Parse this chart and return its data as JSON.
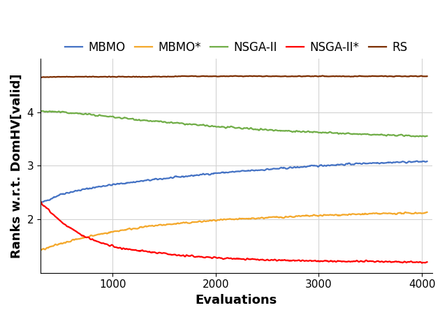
{
  "title": "",
  "xlabel": "Evaluations",
  "ylabel": "Ranks w.r.t. DomHV[valid]",
  "xlim": [
    300,
    4100
  ],
  "ylim": [
    1.0,
    5.0
  ],
  "yticks": [
    2,
    3,
    4
  ],
  "xticks": [
    1000,
    2000,
    3000,
    4000
  ],
  "series": [
    {
      "label": "MBMO",
      "color": "#4472C4",
      "points_x": [
        300,
        500,
        700,
        900,
        1100,
        1400,
        1700,
        2000,
        2500,
        3000,
        3500,
        4050
      ],
      "points_y": [
        2.3,
        2.47,
        2.55,
        2.62,
        2.67,
        2.74,
        2.8,
        2.86,
        2.93,
        3.0,
        3.05,
        3.08
      ],
      "noise": 0.012
    },
    {
      "label": "MBMO*",
      "color": "#F4A82B",
      "points_x": [
        300,
        500,
        700,
        900,
        1100,
        1400,
        1700,
        2000,
        2500,
        3000,
        3500,
        4050
      ],
      "points_y": [
        1.42,
        1.55,
        1.65,
        1.73,
        1.8,
        1.88,
        1.93,
        1.98,
        2.03,
        2.07,
        2.1,
        2.12
      ],
      "noise": 0.012
    },
    {
      "label": "NSGA-II",
      "color": "#70AD47",
      "points_x": [
        300,
        500,
        700,
        900,
        1100,
        1400,
        1700,
        2000,
        2500,
        3000,
        3500,
        4050
      ],
      "points_y": [
        4.02,
        4.0,
        3.97,
        3.93,
        3.89,
        3.83,
        3.78,
        3.73,
        3.67,
        3.62,
        3.58,
        3.55
      ],
      "noise": 0.012
    },
    {
      "label": "NSGA-II*",
      "color": "#FF0000",
      "points_x": [
        300,
        500,
        700,
        900,
        1100,
        1400,
        1700,
        2000,
        2500,
        3000,
        3500,
        4050
      ],
      "points_y": [
        2.32,
        1.95,
        1.7,
        1.55,
        1.45,
        1.38,
        1.32,
        1.28,
        1.24,
        1.22,
        1.21,
        1.2
      ],
      "noise": 0.012
    },
    {
      "label": "RS",
      "color": "#7B2D00",
      "points_x": [
        300,
        500,
        700,
        900,
        1100,
        1400,
        1700,
        2000,
        2500,
        3000,
        3500,
        4050
      ],
      "points_y": [
        4.65,
        4.66,
        4.66,
        4.66,
        4.66,
        4.66,
        4.67,
        4.67,
        4.67,
        4.67,
        4.67,
        4.67
      ],
      "noise": 0.005
    }
  ],
  "legend_loc": "upper center",
  "legend_ncol": 5,
  "grid": true,
  "background_color": "#FFFFFF",
  "grid_color": "#D3D3D3",
  "label_fontsize": 13,
  "tick_fontsize": 11,
  "legend_fontsize": 12,
  "linewidth": 1.6,
  "noise_seed": 42
}
